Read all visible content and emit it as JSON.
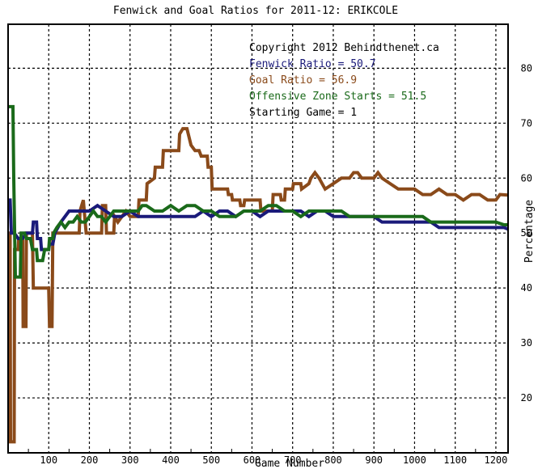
{
  "chart_data": {
    "type": "line",
    "title": "Fenwick and Goal Ratios for 2011-12: ERIKCOLE",
    "xlabel": "Game Number",
    "ylabel": "Percentage",
    "xlim": [
      0,
      1230
    ],
    "ylim": [
      10,
      88
    ],
    "x_ticks": [
      100,
      200,
      300,
      400,
      500,
      600,
      700,
      800,
      900,
      1000,
      1100,
      1200
    ],
    "y_ticks": [
      20,
      30,
      40,
      50,
      60,
      70,
      80
    ],
    "grid": true,
    "annotations": [
      {
        "text": "Copyright 2012 Behindthenet.ca",
        "color": "#000000"
      },
      {
        "text": "Fenwick Ratio = 50.7",
        "color": "#1a1a7a"
      },
      {
        "text": "Goal Ratio = 56.9",
        "color": "#8a4a1a"
      },
      {
        "text": "Offensive Zone Starts = 51.5",
        "color": "#1a6a1a"
      },
      {
        "text": "Starting Game = 1",
        "color": "#000000"
      }
    ],
    "series": [
      {
        "color": "#8a4a1a",
        "points": [
          [
            0,
            50
          ],
          [
            5,
            50
          ],
          [
            6,
            12
          ],
          [
            15,
            12
          ],
          [
            16,
            47
          ],
          [
            25,
            47
          ],
          [
            26,
            49
          ],
          [
            36,
            49
          ],
          [
            37,
            33
          ],
          [
            44,
            33
          ],
          [
            45,
            50
          ],
          [
            60,
            50
          ],
          [
            62,
            40
          ],
          [
            100,
            40
          ],
          [
            102,
            33
          ],
          [
            108,
            33
          ],
          [
            110,
            50
          ],
          [
            175,
            50
          ],
          [
            177,
            54
          ],
          [
            185,
            56
          ],
          [
            192,
            50
          ],
          [
            230,
            50
          ],
          [
            232,
            55
          ],
          [
            240,
            55
          ],
          [
            242,
            50
          ],
          [
            260,
            50
          ],
          [
            262,
            53
          ],
          [
            270,
            52
          ],
          [
            290,
            54
          ],
          [
            300,
            53
          ],
          [
            320,
            53
          ],
          [
            322,
            56
          ],
          [
            340,
            56
          ],
          [
            342,
            59
          ],
          [
            360,
            60
          ],
          [
            362,
            62
          ],
          [
            380,
            62
          ],
          [
            382,
            65
          ],
          [
            420,
            65
          ],
          [
            422,
            68
          ],
          [
            430,
            69
          ],
          [
            440,
            69
          ],
          [
            450,
            66
          ],
          [
            460,
            65
          ],
          [
            470,
            65
          ],
          [
            475,
            64
          ],
          [
            490,
            64
          ],
          [
            492,
            62
          ],
          [
            500,
            62
          ],
          [
            502,
            58
          ],
          [
            540,
            58
          ],
          [
            542,
            57
          ],
          [
            550,
            57
          ],
          [
            552,
            56
          ],
          [
            570,
            56
          ],
          [
            572,
            55
          ],
          [
            580,
            55
          ],
          [
            582,
            56
          ],
          [
            600,
            56
          ],
          [
            602,
            56
          ],
          [
            620,
            56
          ],
          [
            622,
            54
          ],
          [
            650,
            54
          ],
          [
            652,
            57
          ],
          [
            670,
            57
          ],
          [
            672,
            56
          ],
          [
            680,
            56
          ],
          [
            682,
            58
          ],
          [
            700,
            58
          ],
          [
            702,
            59
          ],
          [
            720,
            59
          ],
          [
            722,
            58
          ],
          [
            740,
            59
          ],
          [
            745,
            60
          ],
          [
            755,
            61
          ],
          [
            765,
            60
          ],
          [
            780,
            58
          ],
          [
            800,
            59
          ],
          [
            820,
            60
          ],
          [
            840,
            60
          ],
          [
            850,
            61
          ],
          [
            860,
            61
          ],
          [
            870,
            60
          ],
          [
            880,
            60
          ],
          [
            900,
            60
          ],
          [
            910,
            61
          ],
          [
            920,
            60
          ],
          [
            940,
            59
          ],
          [
            960,
            58
          ],
          [
            980,
            58
          ],
          [
            1000,
            58
          ],
          [
            1020,
            57
          ],
          [
            1040,
            57
          ],
          [
            1060,
            58
          ],
          [
            1080,
            57
          ],
          [
            1100,
            57
          ],
          [
            1120,
            56
          ],
          [
            1140,
            57
          ],
          [
            1160,
            57
          ],
          [
            1180,
            56
          ],
          [
            1200,
            56
          ],
          [
            1210,
            57
          ],
          [
            1230,
            56.9
          ]
        ]
      },
      {
        "color": "#1a1a7a",
        "points": [
          [
            0,
            56
          ],
          [
            5,
            56
          ],
          [
            8,
            50
          ],
          [
            15,
            50
          ],
          [
            25,
            49
          ],
          [
            35,
            49
          ],
          [
            45,
            50
          ],
          [
            60,
            50
          ],
          [
            62,
            52
          ],
          [
            70,
            52
          ],
          [
            72,
            49
          ],
          [
            80,
            49
          ],
          [
            82,
            47
          ],
          [
            100,
            47
          ],
          [
            102,
            48
          ],
          [
            110,
            48
          ],
          [
            115,
            50
          ],
          [
            130,
            52
          ],
          [
            150,
            54
          ],
          [
            170,
            54
          ],
          [
            190,
            54
          ],
          [
            200,
            54
          ],
          [
            220,
            55
          ],
          [
            240,
            54
          ],
          [
            260,
            53
          ],
          [
            280,
            53
          ],
          [
            300,
            54
          ],
          [
            320,
            53
          ],
          [
            340,
            53
          ],
          [
            360,
            53
          ],
          [
            380,
            53
          ],
          [
            400,
            53
          ],
          [
            420,
            53
          ],
          [
            440,
            53
          ],
          [
            460,
            53
          ],
          [
            480,
            54
          ],
          [
            500,
            53
          ],
          [
            520,
            54
          ],
          [
            540,
            54
          ],
          [
            560,
            53
          ],
          [
            580,
            54
          ],
          [
            600,
            54
          ],
          [
            620,
            53
          ],
          [
            640,
            54
          ],
          [
            660,
            54
          ],
          [
            680,
            54
          ],
          [
            700,
            54
          ],
          [
            720,
            54
          ],
          [
            740,
            53
          ],
          [
            760,
            54
          ],
          [
            780,
            54
          ],
          [
            800,
            53
          ],
          [
            820,
            53
          ],
          [
            840,
            53
          ],
          [
            860,
            53
          ],
          [
            880,
            53
          ],
          [
            900,
            53
          ],
          [
            920,
            52
          ],
          [
            940,
            52
          ],
          [
            960,
            52
          ],
          [
            980,
            52
          ],
          [
            1000,
            52
          ],
          [
            1020,
            52
          ],
          [
            1040,
            52
          ],
          [
            1060,
            51
          ],
          [
            1080,
            51
          ],
          [
            1100,
            51
          ],
          [
            1120,
            51
          ],
          [
            1140,
            51
          ],
          [
            1160,
            51
          ],
          [
            1180,
            51
          ],
          [
            1200,
            51
          ],
          [
            1220,
            51
          ],
          [
            1230,
            50.7
          ]
        ]
      },
      {
        "color": "#1a6a1a",
        "points": [
          [
            0,
            73
          ],
          [
            12,
            73
          ],
          [
            14,
            60
          ],
          [
            18,
            42
          ],
          [
            30,
            42
          ],
          [
            32,
            50
          ],
          [
            40,
            50
          ],
          [
            45,
            49
          ],
          [
            55,
            49
          ],
          [
            60,
            47
          ],
          [
            70,
            47
          ],
          [
            72,
            45
          ],
          [
            85,
            45
          ],
          [
            90,
            47
          ],
          [
            100,
            47
          ],
          [
            102,
            49
          ],
          [
            110,
            49
          ],
          [
            112,
            50
          ],
          [
            120,
            51
          ],
          [
            130,
            52
          ],
          [
            140,
            51
          ],
          [
            150,
            52
          ],
          [
            160,
            52
          ],
          [
            170,
            53
          ],
          [
            180,
            52
          ],
          [
            190,
            52
          ],
          [
            200,
            53
          ],
          [
            210,
            54
          ],
          [
            220,
            53
          ],
          [
            230,
            53
          ],
          [
            240,
            52
          ],
          [
            250,
            53
          ],
          [
            260,
            54
          ],
          [
            280,
            54
          ],
          [
            300,
            54
          ],
          [
            320,
            54
          ],
          [
            330,
            55
          ],
          [
            340,
            55
          ],
          [
            360,
            54
          ],
          [
            380,
            54
          ],
          [
            400,
            55
          ],
          [
            420,
            54
          ],
          [
            440,
            55
          ],
          [
            460,
            55
          ],
          [
            480,
            54
          ],
          [
            500,
            54
          ],
          [
            520,
            53
          ],
          [
            540,
            53
          ],
          [
            560,
            53
          ],
          [
            580,
            54
          ],
          [
            600,
            54
          ],
          [
            620,
            54
          ],
          [
            640,
            55
          ],
          [
            660,
            55
          ],
          [
            680,
            54
          ],
          [
            700,
            54
          ],
          [
            720,
            53
          ],
          [
            740,
            54
          ],
          [
            760,
            54
          ],
          [
            780,
            54
          ],
          [
            800,
            54
          ],
          [
            820,
            54
          ],
          [
            840,
            53
          ],
          [
            860,
            53
          ],
          [
            880,
            53
          ],
          [
            900,
            53
          ],
          [
            920,
            53
          ],
          [
            940,
            53
          ],
          [
            960,
            53
          ],
          [
            980,
            53
          ],
          [
            1000,
            53
          ],
          [
            1020,
            53
          ],
          [
            1040,
            52
          ],
          [
            1060,
            52
          ],
          [
            1080,
            52
          ],
          [
            1100,
            52
          ],
          [
            1120,
            52
          ],
          [
            1140,
            52
          ],
          [
            1160,
            52
          ],
          [
            1180,
            52
          ],
          [
            1200,
            52
          ],
          [
            1220,
            51.5
          ],
          [
            1230,
            51.5
          ]
        ]
      }
    ]
  }
}
